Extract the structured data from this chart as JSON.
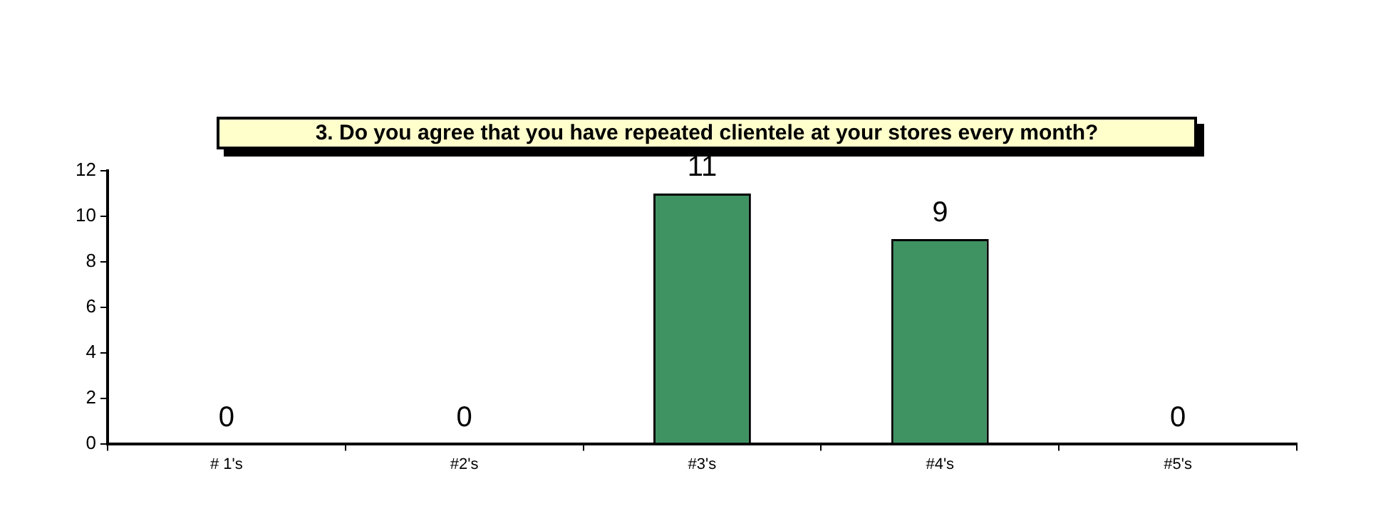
{
  "chart_data": {
    "type": "bar",
    "title": "3.  Do you agree that you have repeated clientele at your stores every month?",
    "categories": [
      "# 1's",
      "#2's",
      "#3's",
      "#4's",
      "#5's"
    ],
    "values": [
      0,
      0,
      11,
      9,
      0
    ],
    "color": "#3f9262",
    "ylim": [
      0,
      12
    ],
    "yticks": [
      0,
      2,
      4,
      6,
      8,
      10,
      12
    ],
    "grid": false,
    "data_labels": true
  }
}
